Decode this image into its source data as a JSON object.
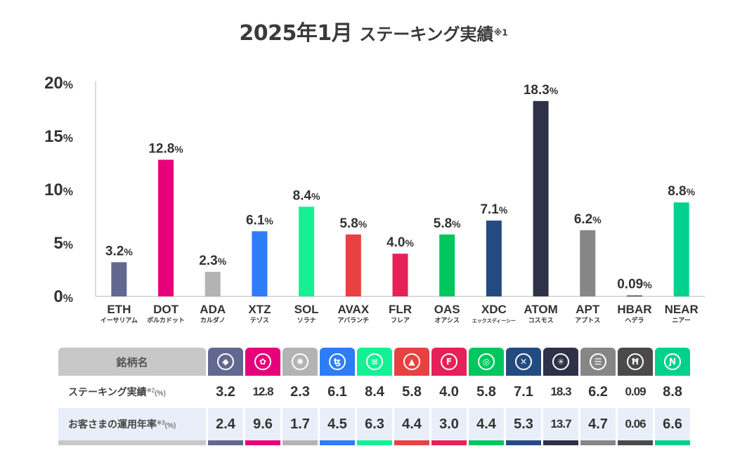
{
  "title": {
    "main": "2025年1月",
    "sub": "ステーキング実績",
    "note": "※1"
  },
  "colors": {
    "ETH": "#626890",
    "DOT": "#e6007a",
    "ADA": "#b3b3b3",
    "XTZ": "#2c7df7",
    "SOL": "#14f195",
    "AVAX": "#e84142",
    "FLR": "#e62058",
    "OAS": "#00c65e",
    "XDC": "#244b81",
    "ATOM": "#2e3148",
    "APT": "#868686",
    "HBAR": "#4a4a4a",
    "NEAR": "#00d18c"
  },
  "chart_data": {
    "type": "bar",
    "categories": [
      "ETH",
      "DOT",
      "ADA",
      "XTZ",
      "SOL",
      "AVAX",
      "FLR",
      "OAS",
      "XDC",
      "ATOM",
      "APT",
      "HBAR",
      "NEAR"
    ],
    "category_kana": [
      "イーサリアム",
      "ポルカドット",
      "カルダノ",
      "テゾス",
      "ソラナ",
      "アバランチ",
      "フレア",
      "オアシス",
      "エックスディーシー",
      "コスモス",
      "アプトス",
      "ヘデラ",
      "ニアー"
    ],
    "values": [
      3.2,
      12.8,
      2.3,
      6.1,
      8.4,
      5.8,
      4.0,
      5.8,
      7.1,
      18.3,
      6.2,
      0.09,
      8.8
    ],
    "value_labels": [
      "3.2",
      "12.8",
      "2.3",
      "6.1",
      "8.4",
      "5.8",
      "4.0",
      "5.8",
      "7.1",
      "18.3",
      "6.2",
      "0.09",
      "8.8"
    ],
    "ylim": [
      0,
      20
    ],
    "yticks": [
      "0",
      "5",
      "10",
      "15",
      "20"
    ],
    "unit": "%",
    "grid": false
  },
  "table": {
    "header_label": "銘柄名",
    "coin_icons": [
      "◆",
      "✿",
      "✺",
      "ꜩ",
      "≡",
      "▲",
      "F",
      "◎",
      "✕",
      "✳",
      "☰",
      "Ħ",
      "Ɲ"
    ],
    "rows": [
      {
        "label": "ステーキング実績",
        "note": "※2",
        "unit": "(%)",
        "values": [
          "3.2",
          "12.8",
          "2.3",
          "6.1",
          "8.4",
          "5.8",
          "4.0",
          "5.8",
          "7.1",
          "18.3",
          "6.2",
          "0.09",
          "8.8"
        ]
      },
      {
        "label": "お客さまの運用年率",
        "note": "※3",
        "unit": "(%)",
        "values": [
          "2.4",
          "9.6",
          "1.7",
          "4.5",
          "6.3",
          "4.4",
          "3.0",
          "4.4",
          "5.3",
          "13.7",
          "4.7",
          "0.06",
          "6.6"
        ]
      }
    ]
  }
}
